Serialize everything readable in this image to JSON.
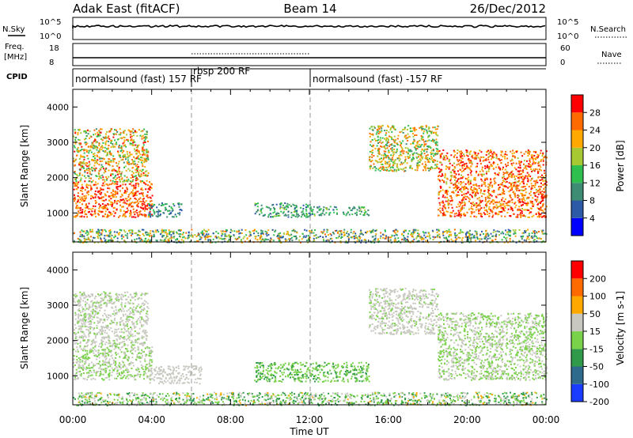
{
  "header": {
    "title_left": "Adak East (fitACF)",
    "title_center": "Beam 14",
    "title_right": "26/Dec/2012"
  },
  "status_panels": {
    "nsky_label": "N.Sky",
    "nsearch_label": "N.Search",
    "noise_left_ticks": [
      "10^5",
      "10^0"
    ],
    "noise_right_ticks": [
      "10^5",
      "10^0"
    ],
    "freq_label": "Freq.",
    "freq_unit": "[MHz]",
    "freq_ticks": [
      "18",
      "8"
    ],
    "nave_label": "Nave",
    "nave_ticks": [
      "60",
      "0"
    ],
    "cpid_label": "CPID",
    "cpid_segments": [
      {
        "label": "normalsound (fast)  157 RF",
        "start_hour": 0,
        "end_hour": 6
      },
      {
        "label": "rbsp  200 RF",
        "start_hour": 6,
        "end_hour": 12
      },
      {
        "label": "normalsound (fast) -157 RF",
        "start_hour": 12,
        "end_hour": 24
      }
    ]
  },
  "chart_data": [
    {
      "type": "heatmap",
      "quantity": "Power",
      "ylabel": "Slant Range [km]",
      "xlabel": "Time UT",
      "x_ticks": [
        "00:00",
        "04:00",
        "08:00",
        "12:00",
        "16:00",
        "20:00",
        "00:00"
      ],
      "xlim_hours": [
        0,
        24
      ],
      "ylim_km": [
        180,
        4500
      ],
      "y_ticks": [
        "1000",
        "2000",
        "3000",
        "4000"
      ],
      "colorbar": {
        "label": "Power [dB]",
        "range": [
          0,
          30
        ],
        "ticks": [
          "4",
          "8",
          "12",
          "16",
          "20",
          "24",
          "28"
        ],
        "colors": [
          "#0000ff",
          "#2d5aa6",
          "#3e8c73",
          "#2ebf4f",
          "#a6c832",
          "#ffa800",
          "#ff6a00",
          "#ff0000"
        ]
      },
      "scatter_regions": [
        {
          "t0": 0.0,
          "t1": 4.0,
          "r0": 900,
          "r1": 1900,
          "value_range": [
            20,
            30
          ]
        },
        {
          "t0": 0.0,
          "t1": 3.8,
          "r0": 1900,
          "r1": 3400,
          "value_range": [
            10,
            28
          ]
        },
        {
          "t0": 3.8,
          "t1": 5.5,
          "r0": 900,
          "r1": 1300,
          "value_range": [
            4,
            14
          ]
        },
        {
          "t0": 9.2,
          "t1": 12.0,
          "r0": 900,
          "r1": 1300,
          "value_range": [
            6,
            16
          ]
        },
        {
          "t0": 12.0,
          "t1": 15.0,
          "r0": 950,
          "r1": 1200,
          "value_range": [
            6,
            16
          ]
        },
        {
          "t0": 15.0,
          "t1": 18.5,
          "r0": 2200,
          "r1": 3500,
          "value_range": [
            10,
            26
          ]
        },
        {
          "t0": 18.5,
          "t1": 24.0,
          "r0": 900,
          "r1": 2800,
          "value_range": [
            18,
            30
          ]
        },
        {
          "t0": 0.0,
          "t1": 24.0,
          "r0": 180,
          "r1": 550,
          "value_range": [
            4,
            24
          ]
        }
      ]
    },
    {
      "type": "heatmap",
      "quantity": "Velocity",
      "ylabel": "Slant Range [km]",
      "xlabel": "Time UT",
      "x_ticks": [
        "00:00",
        "04:00",
        "08:00",
        "12:00",
        "16:00",
        "20:00",
        "00:00"
      ],
      "xlim_hours": [
        0,
        24
      ],
      "ylim_km": [
        180,
        4500
      ],
      "y_ticks": [
        "1000",
        "2000",
        "3000",
        "4000"
      ],
      "colorbar": {
        "label": "Velocity [m s-1]",
        "range": [
          -250,
          250
        ],
        "ticks": [
          "200",
          "100",
          "50",
          "15",
          "-15",
          "-50",
          "-100",
          "-200"
        ],
        "colors": [
          "#1a3cff",
          "#2d6a8c",
          "#2e9a4a",
          "#7ad24a",
          "#c8c8c0",
          "#ffa800",
          "#ff6a00",
          "#ff0000"
        ]
      },
      "scatter_regions": [
        {
          "t0": 0.0,
          "t1": 4.0,
          "r0": 900,
          "r1": 1900,
          "value_range": [
            -15,
            15
          ]
        },
        {
          "t0": 0.0,
          "t1": 3.8,
          "r0": 1900,
          "r1": 3400,
          "value_range": [
            -15,
            50
          ]
        },
        {
          "t0": 3.8,
          "t1": 6.5,
          "r0": 800,
          "r1": 1300,
          "value_range": [
            15,
            60
          ]
        },
        {
          "t0": 9.2,
          "t1": 15.0,
          "r0": 850,
          "r1": 1400,
          "value_range": [
            -80,
            -20
          ]
        },
        {
          "t0": 15.0,
          "t1": 18.5,
          "r0": 2200,
          "r1": 3500,
          "value_range": [
            -15,
            60
          ]
        },
        {
          "t0": 18.5,
          "t1": 24.0,
          "r0": 900,
          "r1": 2800,
          "value_range": [
            -15,
            15
          ]
        },
        {
          "t0": 0.0,
          "t1": 24.0,
          "r0": 180,
          "r1": 550,
          "value_range": [
            -120,
            80
          ]
        }
      ]
    }
  ]
}
